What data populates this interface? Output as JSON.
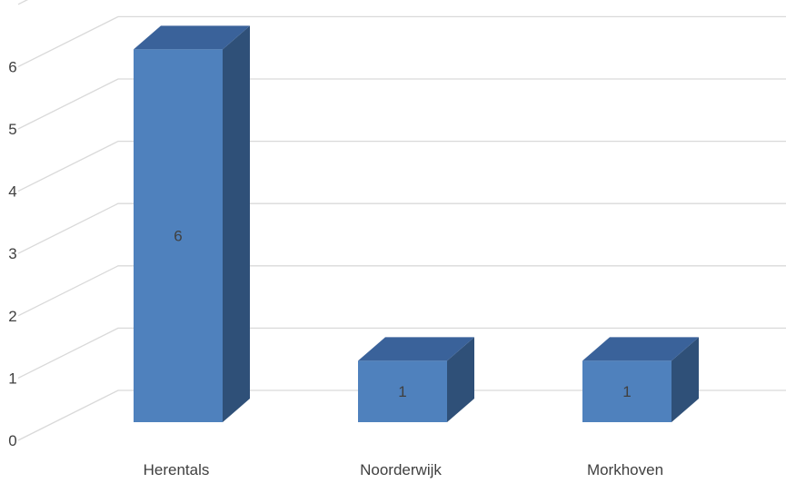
{
  "chart_data": {
    "type": "bar",
    "style": "3d-column",
    "categories": [
      "Herentals",
      "Noorderwijk",
      "Morkhoven"
    ],
    "values": [
      6,
      1,
      1
    ],
    "data_labels": [
      "6",
      "1",
      "1"
    ],
    "y_ticks": [
      "0",
      "1",
      "2",
      "3",
      "4",
      "5",
      "6"
    ],
    "ylim": [
      0,
      6.5
    ],
    "grid": true,
    "legend": "none",
    "colors": {
      "bar_front": "#4F81BD",
      "bar_top": "#3A629A",
      "bar_side": "#2F5078",
      "bar_edge": "#3A6494",
      "grid": "#D9D9D9",
      "text": "#404040"
    }
  }
}
